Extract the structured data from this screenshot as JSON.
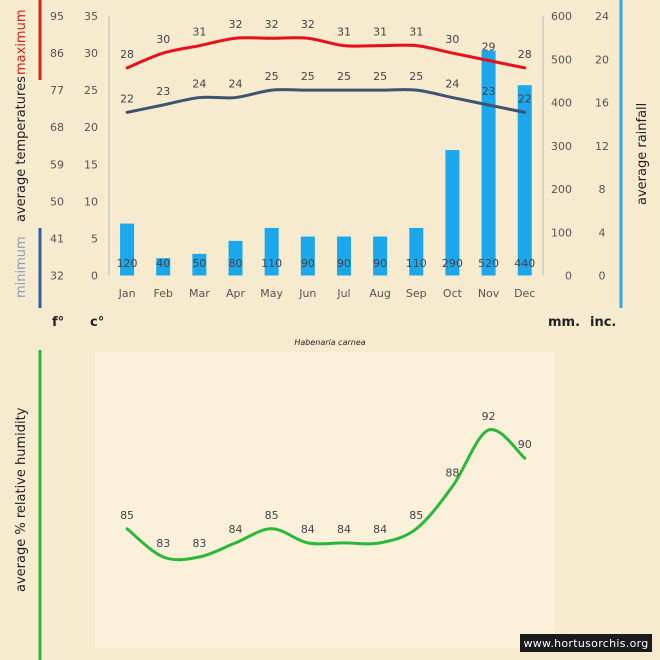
{
  "colors": {
    "background": "#f7ebcf",
    "panel": "#fbf1da",
    "max_line": "#e8101a",
    "min_line": "#3f5371",
    "rain_bar": "#1aa7ec",
    "humidity_line": "#2bb839",
    "left_accent_max": "#d8211c",
    "left_accent_min": "#2e5da1",
    "right_accent": "#2aa7e8",
    "humidity_accent": "#2bb839"
  },
  "labels": {
    "maximum": "maximum",
    "average_temperatures": "average  temperatures",
    "minimum": "minimum",
    "average_rainfall": "average rainfall",
    "unit_f": "f°",
    "unit_c": "c°",
    "unit_mm": "mm.",
    "unit_inc": "inc.",
    "species": "Habenaria carnea",
    "humidity_title": "average %  relative humidity",
    "watermark": "www.hortusorchis.org"
  },
  "chart_data": [
    {
      "type": "bar+line",
      "title": "Habenaria carnea",
      "categories": [
        "Jan",
        "Feb",
        "Mar",
        "Apr",
        "May",
        "Jun",
        "Jul",
        "Aug",
        "Sep",
        "Oct",
        "Nov",
        "Dec"
      ],
      "series": [
        {
          "name": "maximum",
          "kind": "line",
          "axis": "celsius",
          "values": [
            28,
            30,
            31,
            32,
            32,
            32,
            31,
            31,
            31,
            30,
            29,
            28
          ]
        },
        {
          "name": "minimum",
          "kind": "line",
          "axis": "celsius",
          "values": [
            22,
            23,
            24,
            24,
            25,
            25,
            25,
            25,
            25,
            24,
            23,
            22
          ]
        },
        {
          "name": "rainfall",
          "kind": "bar",
          "axis": "mm",
          "values": [
            120,
            40,
            50,
            80,
            110,
            90,
            90,
            90,
            110,
            290,
            520,
            440
          ]
        }
      ],
      "axes": {
        "fahrenheit_ticks": [
          "95",
          "86",
          "77",
          "68",
          "59",
          "50",
          "41",
          "32"
        ],
        "celsius_ticks": [
          "35",
          "30",
          "25",
          "20",
          "15",
          "10",
          "5",
          "0"
        ],
        "celsius_range": [
          0,
          35
        ],
        "mm_ticks": [
          "600",
          "500",
          "400",
          "300",
          "200",
          "100",
          "0"
        ],
        "mm_range": [
          0,
          600
        ],
        "inch_ticks": [
          "24",
          "20",
          "16",
          "12",
          "8",
          "4",
          "0"
        ]
      },
      "ylabel_left": "average temperatures",
      "ylabel_right": "average rainfall"
    },
    {
      "type": "line",
      "categories": [
        "Jan",
        "Feb",
        "Mar",
        "Apr",
        "May",
        "Jun",
        "Jul",
        "Aug",
        "Sep",
        "Oct",
        "Nov",
        "Dec"
      ],
      "series": [
        {
          "name": "relative humidity",
          "values": [
            85,
            83,
            83,
            84,
            85,
            84,
            84,
            84,
            85,
            88,
            92,
            90
          ]
        }
      ],
      "ylabel": "average %  relative humidity"
    }
  ]
}
